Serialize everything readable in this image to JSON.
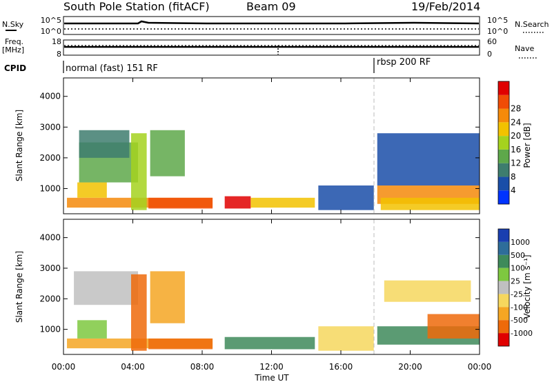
{
  "header": {
    "station": "South Pole Station (fitACF)",
    "beam": "Beam 09",
    "date": "19/Feb/2014"
  },
  "status_panels": {
    "nsky_label": "N.Sky",
    "nsky_ticks": [
      "10^5",
      "10^0"
    ],
    "nsearch_label": "N.Search",
    "nsearch_ticks": [
      "10^5",
      "10^0"
    ],
    "freq_label": "Freq.",
    "freq_unit": "[MHz]",
    "freq_ticks": [
      "18",
      "8"
    ],
    "nave_label": "Nave",
    "nave_ticks": [
      "60",
      "0"
    ],
    "cpid_label": "CPID",
    "cpid_segments": [
      {
        "label": "normal (fast) 151 RF",
        "start_hour": 0
      },
      {
        "label": "rbsp 200 RF",
        "start_hour": 18
      }
    ]
  },
  "chart_data": [
    {
      "type": "heatmap",
      "panel": "power",
      "ylabel": "Slant Range [km]",
      "xlabel": "Time UT",
      "x_ticks": [
        "00:00",
        "04:00",
        "08:00",
        "12:00",
        "16:00",
        "20:00",
        "00:00"
      ],
      "x_range_hours": [
        0,
        24
      ],
      "ylim": [
        180,
        4600
      ],
      "y_ticks": [
        1000,
        2000,
        3000,
        4000
      ],
      "colorbar": {
        "label": "Power [dB]",
        "ticks": [
          "4",
          "8",
          "12",
          "16",
          "20",
          "24",
          "28"
        ],
        "colors": [
          "#0033ff",
          "#1a4ea8",
          "#3e7d6e",
          "#5ea84a",
          "#a5d21e",
          "#f2c200",
          "#f58a0a",
          "#f04c06",
          "#e00000"
        ]
      },
      "regions": [
        {
          "h0": 0.2,
          "h1": 8.6,
          "r0": 380,
          "r1": 700,
          "level": 6
        },
        {
          "h0": 4.9,
          "h1": 8.6,
          "r0": 350,
          "r1": 700,
          "level": 7
        },
        {
          "h0": 9.3,
          "h1": 10.8,
          "r0": 350,
          "r1": 750,
          "level": 8
        },
        {
          "h0": 10.8,
          "h1": 14.5,
          "r0": 380,
          "r1": 700,
          "level": 5
        },
        {
          "h0": 0.8,
          "h1": 2.5,
          "r0": 700,
          "r1": 1200,
          "level": 5
        },
        {
          "h0": 0.9,
          "h1": 4.3,
          "r0": 1200,
          "r1": 2500,
          "level": 3
        },
        {
          "h0": 0.9,
          "h1": 3.8,
          "r0": 2000,
          "r1": 2900,
          "level": 2
        },
        {
          "h0": 3.9,
          "h1": 4.8,
          "r0": 300,
          "r1": 2800,
          "level": 4
        },
        {
          "h0": 5.0,
          "h1": 7.0,
          "r0": 1400,
          "r1": 2900,
          "level": 3
        },
        {
          "h0": 14.7,
          "h1": 17.9,
          "r0": 300,
          "r1": 1100,
          "level": 1
        },
        {
          "h0": 18.1,
          "h1": 24.0,
          "r0": 500,
          "r1": 1100,
          "level": 6
        },
        {
          "h0": 18.1,
          "h1": 24.0,
          "r0": 1100,
          "r1": 2800,
          "level": 1
        },
        {
          "h0": 18.3,
          "h1": 24.0,
          "r0": 300,
          "r1": 700,
          "level": 5
        }
      ]
    },
    {
      "type": "heatmap",
      "panel": "velocity",
      "ylabel": "Slant Range [km]",
      "xlabel": "Time UT",
      "x_ticks": [
        "00:00",
        "04:00",
        "08:00",
        "12:00",
        "16:00",
        "20:00",
        "00:00"
      ],
      "x_range_hours": [
        0,
        24
      ],
      "ylim": [
        180,
        4600
      ],
      "y_ticks": [
        1000,
        2000,
        3000,
        4000
      ],
      "colorbar": {
        "label": "Velocity [m s⁻¹]",
        "ticks": [
          "1000",
          "500",
          "100",
          "25",
          "-25",
          "-100",
          "-500",
          "-1000"
        ],
        "colors": [
          "#1a3fb0",
          "#2e6d9a",
          "#3e8a5a",
          "#7ec840",
          "#c0c0c0",
          "#f6d75e",
          "#f5a623",
          "#ee6a0a",
          "#e00000"
        ]
      },
      "regions": [
        {
          "h0": 0.2,
          "h1": 8.6,
          "r0": 380,
          "r1": 700,
          "level": 6
        },
        {
          "h0": 4.9,
          "h1": 8.6,
          "r0": 350,
          "r1": 700,
          "level": 7
        },
        {
          "h0": 9.3,
          "h1": 14.5,
          "r0": 350,
          "r1": 750,
          "level": 2
        },
        {
          "h0": 0.8,
          "h1": 2.5,
          "r0": 700,
          "r1": 1300,
          "level": 3
        },
        {
          "h0": 0.6,
          "h1": 4.3,
          "r0": 1800,
          "r1": 2900,
          "level": 4
        },
        {
          "h0": 3.9,
          "h1": 4.8,
          "r0": 300,
          "r1": 2800,
          "level": 7
        },
        {
          "h0": 5.0,
          "h1": 7.0,
          "r0": 1200,
          "r1": 2900,
          "level": 6
        },
        {
          "h0": 14.7,
          "h1": 17.9,
          "r0": 300,
          "r1": 1100,
          "level": 5
        },
        {
          "h0": 18.1,
          "h1": 24.0,
          "r0": 500,
          "r1": 1100,
          "level": 2
        },
        {
          "h0": 21.0,
          "h1": 24.0,
          "r0": 700,
          "r1": 1500,
          "level": 7
        },
        {
          "h0": 18.5,
          "h1": 23.5,
          "r0": 1900,
          "r1": 2600,
          "level": 5
        }
      ]
    }
  ]
}
